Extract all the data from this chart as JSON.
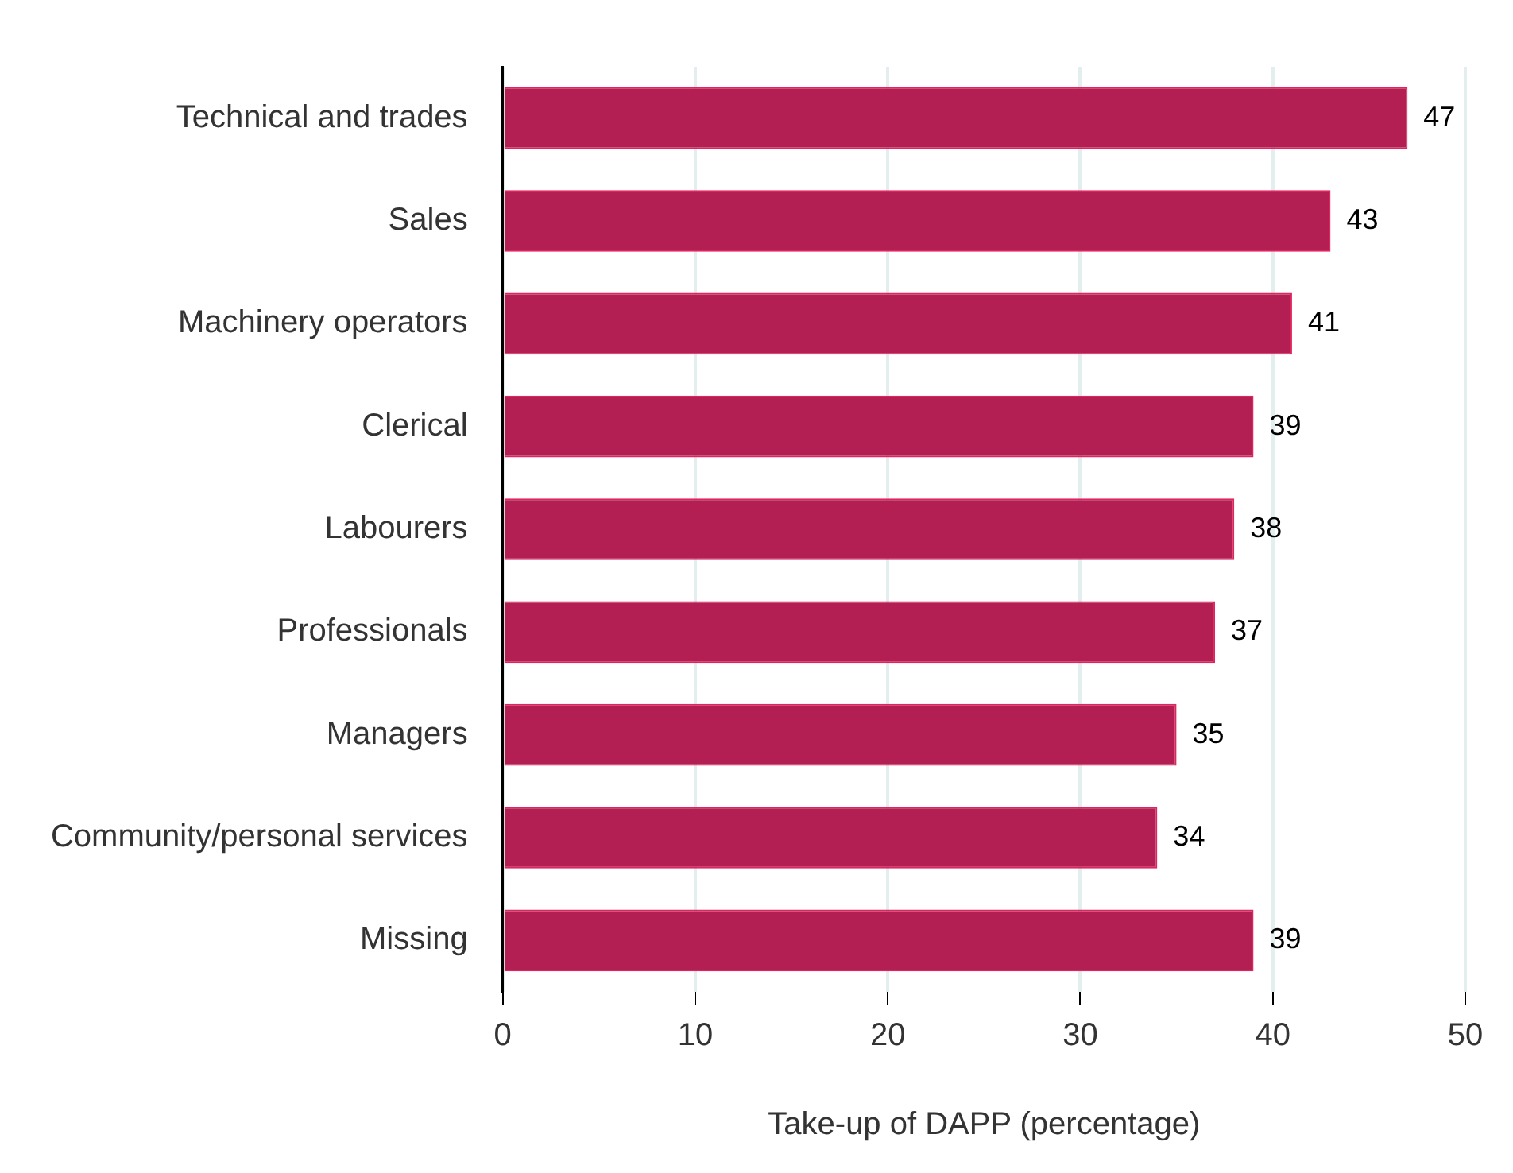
{
  "chart_data": {
    "type": "bar",
    "orientation": "horizontal",
    "xlabel": "Take-up of DAPP (percentage)",
    "categories": [
      "Technical and trades",
      "Sales",
      "Machinery operators",
      "Clerical",
      "Labourers",
      "Professionals",
      "Managers",
      "Community/personal services",
      "Missing"
    ],
    "values": [
      47,
      43,
      41,
      39,
      38,
      37,
      35,
      34,
      39
    ],
    "color": "#b41f53",
    "xlim": [
      0,
      50
    ],
    "xticks": [
      0,
      10,
      20,
      30,
      40,
      50
    ],
    "grid": "x",
    "data_labels": true,
    "legend": false
  }
}
